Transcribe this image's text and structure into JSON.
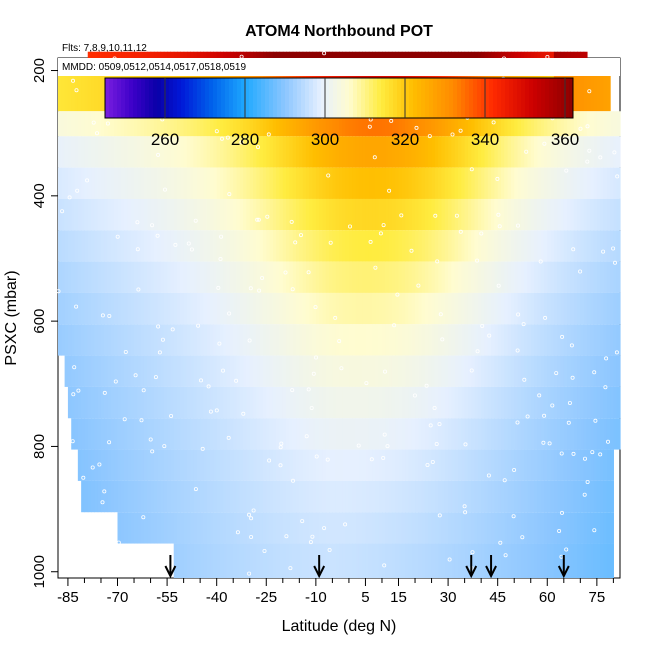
{
  "chart_data": {
    "type": "heatmap",
    "title": "ATOM4 Northbound POT",
    "notes": {
      "flights": "Flts: 7,8,9,10,11,12",
      "dates": "MMDD: 0509,0512,0514,0517,0518,0519"
    },
    "xlabel": "Latitude (deg N)",
    "ylabel": "PSXC (mbar)",
    "xlim": [
      -88,
      82
    ],
    "ylim": [
      1010,
      180
    ],
    "x_ticks": [
      -85,
      -70,
      -55,
      -40,
      -25,
      -10,
      5,
      15,
      30,
      45,
      60,
      75
    ],
    "x_minor_ticks": [
      -80,
      -75,
      -65,
      -60,
      -50,
      -45,
      -35,
      -30,
      -20,
      -15,
      -5,
      0,
      10,
      20,
      25,
      35,
      40,
      50,
      55,
      65,
      70,
      80
    ],
    "y_ticks": [
      200,
      400,
      600,
      800,
      1000
    ],
    "colorbar": {
      "range": [
        245,
        362
      ],
      "ticks": [
        260,
        280,
        300,
        320,
        340,
        360
      ],
      "stops": [
        {
          "value": 245,
          "color": "#7b1ee0"
        },
        {
          "value": 252,
          "color": "#3b00c8"
        },
        {
          "value": 258,
          "color": "#0a00a8"
        },
        {
          "value": 264,
          "color": "#0018d8"
        },
        {
          "value": 272,
          "color": "#0064ec"
        },
        {
          "value": 280,
          "color": "#1ea8ff"
        },
        {
          "value": 290,
          "color": "#8cc6ff"
        },
        {
          "value": 299,
          "color": "#e6f0ff"
        },
        {
          "value": 306,
          "color": "#fffcd0"
        },
        {
          "value": 314,
          "color": "#ffec40"
        },
        {
          "value": 322,
          "color": "#ffbe00"
        },
        {
          "value": 332,
          "color": "#ff8a00"
        },
        {
          "value": 342,
          "color": "#ff2a00"
        },
        {
          "value": 352,
          "color": "#cc0000"
        },
        {
          "value": 362,
          "color": "#8c0000"
        }
      ]
    },
    "pressure_bins": [
      {
        "p_top": 170,
        "p_bot": 205,
        "lat_min": -79,
        "lat_max": 72
      },
      {
        "p_top": 205,
        "p_bot": 265,
        "lat_min": -88,
        "lat_max": 79
      },
      {
        "p_top": 265,
        "p_bot": 305,
        "lat_min": -88,
        "lat_max": 82
      },
      {
        "p_top": 305,
        "p_bot": 355,
        "lat_min": -88,
        "lat_max": 82
      },
      {
        "p_top": 355,
        "p_bot": 405,
        "lat_min": -88,
        "lat_max": 82
      },
      {
        "p_top": 405,
        "p_bot": 455,
        "lat_min": -88,
        "lat_max": 82
      },
      {
        "p_top": 455,
        "p_bot": 505,
        "lat_min": -88,
        "lat_max": 82
      },
      {
        "p_top": 505,
        "p_bot": 555,
        "lat_min": -88,
        "lat_max": 82
      },
      {
        "p_top": 555,
        "p_bot": 605,
        "lat_min": -88,
        "lat_max": 82
      },
      {
        "p_top": 605,
        "p_bot": 655,
        "lat_min": -88,
        "lat_max": 82
      },
      {
        "p_top": 655,
        "p_bot": 705,
        "lat_min": -86,
        "lat_max": 82
      },
      {
        "p_top": 705,
        "p_bot": 755,
        "lat_min": -85,
        "lat_max": 82
      },
      {
        "p_top": 755,
        "p_bot": 805,
        "lat_min": -84,
        "lat_max": 82
      },
      {
        "p_top": 805,
        "p_bot": 855,
        "lat_min": -82,
        "lat_max": 80
      },
      {
        "p_top": 855,
        "p_bot": 905,
        "lat_min": -81,
        "lat_max": 80
      },
      {
        "p_top": 905,
        "p_bot": 955,
        "lat_min": -70,
        "lat_max": 80
      },
      {
        "p_top": 955,
        "p_bot": 1010,
        "lat_min": -53,
        "lat_max": 80
      }
    ],
    "arrow_markers_lat": [
      -54,
      -9,
      37,
      43,
      65
    ]
  }
}
